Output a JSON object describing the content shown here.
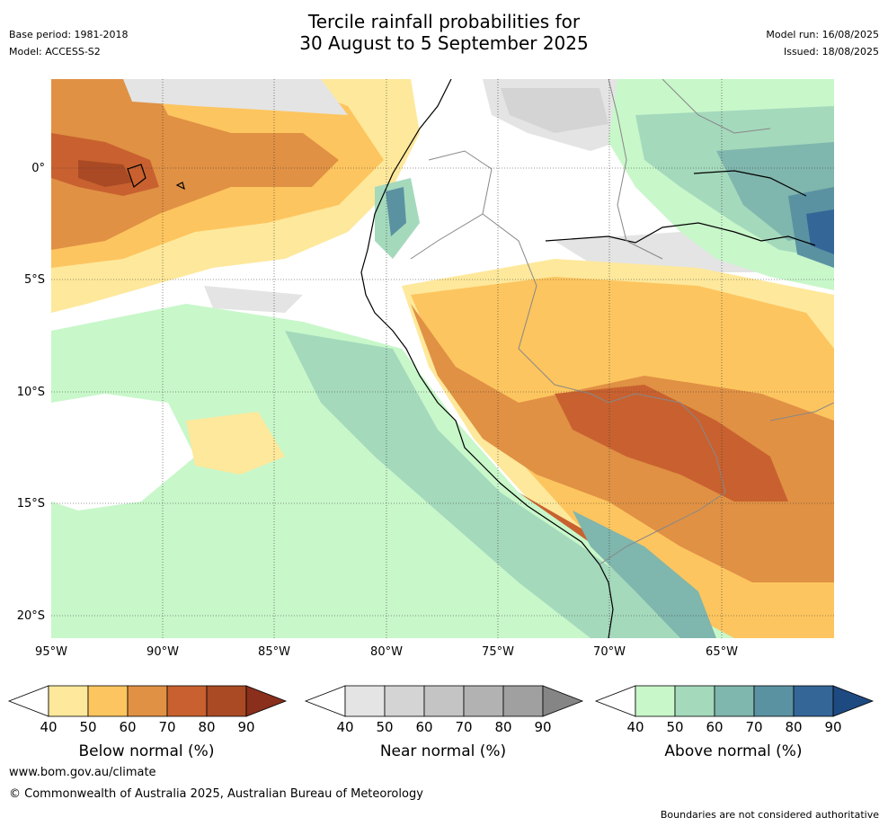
{
  "header": {
    "title_line1": "Tercile rainfall probabilities for",
    "title_line2": "30 August to 5 September 2025",
    "base_period": "Base period: 1981-2018",
    "model": "Model: ACCESS-S2",
    "model_run": "Model run: 16/08/2025",
    "issued": "Issued: 18/08/2025"
  },
  "map": {
    "lat_labels": [
      "0°",
      "5°S",
      "10°S",
      "15°S",
      "20°S"
    ],
    "lon_labels": [
      "95°W",
      "90°W",
      "85°W",
      "80°W",
      "75°W",
      "70°W",
      "65°W"
    ]
  },
  "legend": {
    "below": {
      "title": "Below normal (%)",
      "ticks": [
        "40",
        "50",
        "60",
        "70",
        "80",
        "90"
      ],
      "colors": [
        "#ffffff",
        "#fee89b",
        "#fdc55f",
        "#e09144",
        "#c8612f",
        "#a94a24",
        "#8a2f1c"
      ]
    },
    "near": {
      "title": "Near normal (%)",
      "ticks": [
        "40",
        "50",
        "60",
        "70",
        "80",
        "90"
      ],
      "colors": [
        "#ffffff",
        "#e4e4e4",
        "#d4d4d4",
        "#c4c4c4",
        "#b2b2b2",
        "#a0a0a0",
        "#858585"
      ]
    },
    "above": {
      "title": "Above normal (%)",
      "ticks": [
        "40",
        "50",
        "60",
        "70",
        "80",
        "90"
      ],
      "colors": [
        "#ffffff",
        "#c8f7ca",
        "#a4d9bc",
        "#7fb6ad",
        "#5b92a2",
        "#356698",
        "#1d4a80"
      ]
    }
  },
  "footer": {
    "website": "www.bom.gov.au/climate",
    "copyright": "© Commonwealth of Australia 2025, Australian Bureau of Meteorology",
    "disclaimer": "Boundaries are not considered authoritative"
  }
}
